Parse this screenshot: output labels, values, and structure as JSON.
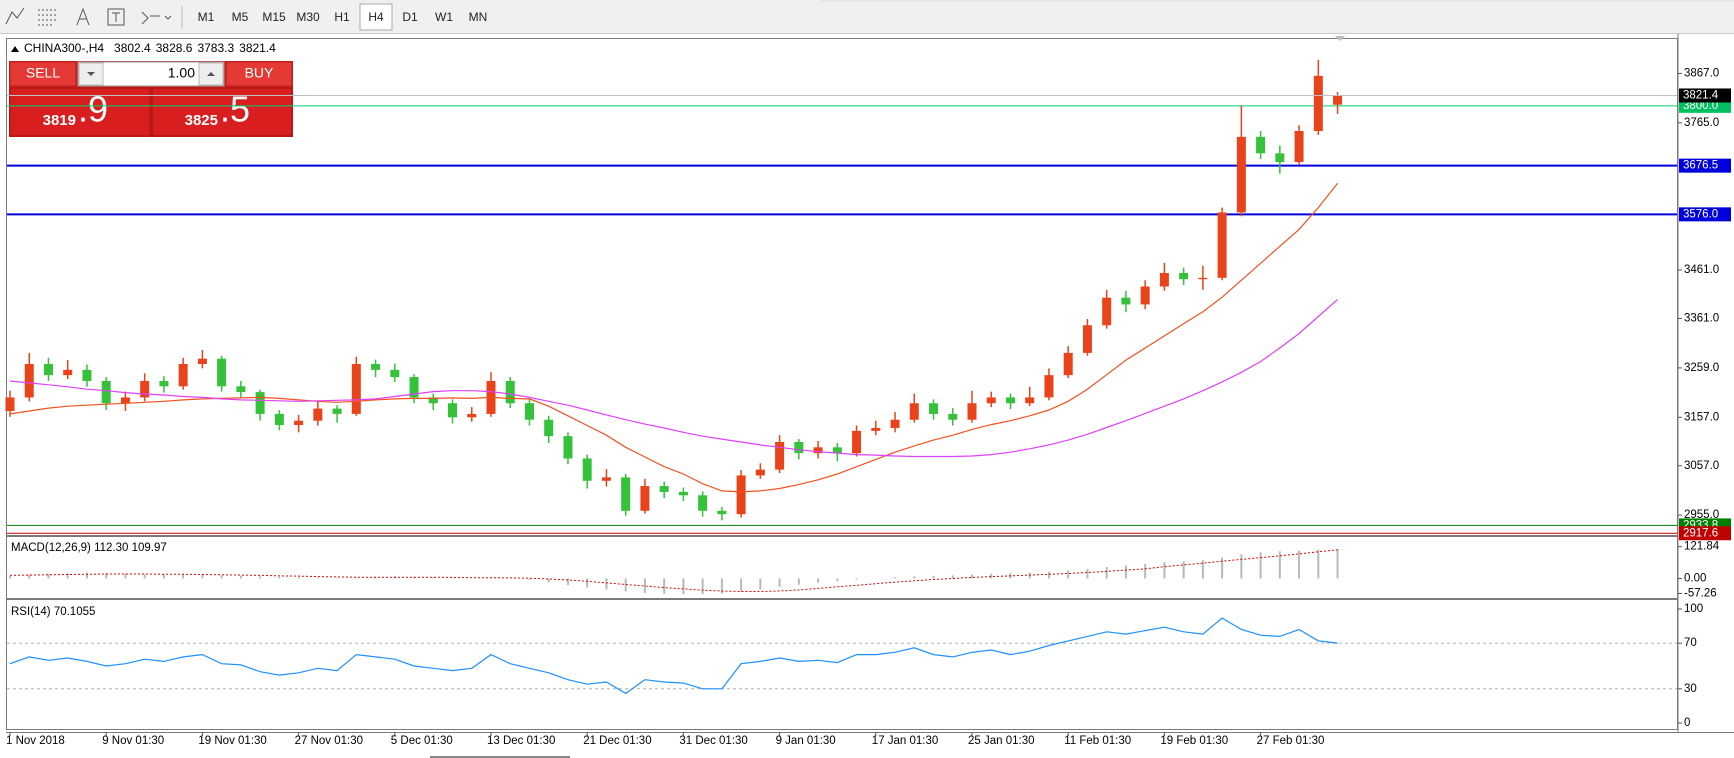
{
  "toolbar": {
    "timeframes": [
      "M1",
      "M5",
      "M15",
      "M30",
      "H1",
      "H4",
      "D1",
      "W1",
      "MN"
    ],
    "active": "H4"
  },
  "trade_panel": {
    "sell": "SELL",
    "buy": "BUY",
    "volume": "1.00",
    "bid_main": "3819",
    "bid_big": ".9",
    "ask_main": "3825",
    "ask_big": ".5"
  },
  "chart_data": {
    "type": "candlestick",
    "symbol": "CHINA300-,H4",
    "up_color": "#e8431a",
    "down_color": "#35c13a",
    "categories": [
      "1 Nov 2018",
      null,
      null,
      null,
      null,
      "9 Nov 01:30",
      null,
      null,
      null,
      null,
      "19 Nov 01:30",
      null,
      null,
      null,
      null,
      "27 Nov 01:30",
      null,
      null,
      null,
      null,
      "5 Dec 01:30",
      null,
      null,
      null,
      null,
      "13 Dec 01:30",
      null,
      null,
      null,
      null,
      "21 Dec 01:30",
      null,
      null,
      null,
      null,
      "31 Dec 01:30",
      null,
      null,
      null,
      null,
      "9 Jan 01:30",
      null,
      null,
      null,
      null,
      "17 Jan 01:30",
      null,
      null,
      null,
      null,
      "25 Jan 01:30",
      null,
      null,
      null,
      null,
      "11 Feb 01:30",
      null,
      null,
      null,
      null,
      "19 Feb 01:30",
      null,
      null,
      null,
      null,
      "27 Feb 01:30",
      null,
      null,
      null,
      null
    ],
    "candles": {
      "open": [
        3170,
        3198,
        3267,
        3244,
        3255,
        3232,
        3186,
        3198,
        3232,
        3221,
        3267,
        3278,
        3221,
        3209,
        3164,
        3141,
        3150,
        3175,
        3164,
        3267,
        3255,
        3240,
        3198,
        3186,
        3157,
        3164,
        3232,
        3186,
        3152,
        3118,
        3072,
        3026,
        3033,
        2964,
        3015,
        3003,
        2996,
        2964,
        2957,
        3037,
        3049,
        3106,
        3083,
        3095,
        3083,
        3129,
        3135,
        3152,
        3186,
        3164,
        3152,
        3186,
        3198,
        3186,
        3198,
        3244,
        3290,
        3347,
        3404,
        3390,
        3427,
        3455,
        3442,
        3445,
        3580,
        3736,
        3702,
        3684,
        3748,
        3802.4
      ],
      "high": [
        3212,
        3290,
        3280,
        3275,
        3266,
        3240,
        3210,
        3248,
        3242,
        3280,
        3296,
        3284,
        3232,
        3214,
        3172,
        3162,
        3190,
        3182,
        3282,
        3276,
        3268,
        3246,
        3206,
        3194,
        3178,
        3250,
        3240,
        3194,
        3160,
        3126,
        3080,
        3050,
        3040,
        3030,
        3024,
        3012,
        3004,
        2972,
        3048,
        3062,
        3120,
        3112,
        3108,
        3104,
        3140,
        3150,
        3168,
        3206,
        3194,
        3176,
        3212,
        3210,
        3206,
        3220,
        3258,
        3304,
        3360,
        3420,
        3418,
        3440,
        3476,
        3466,
        3470,
        3590,
        3800,
        3748,
        3718,
        3760,
        3895,
        3828.6
      ],
      "low": [
        3158,
        3190,
        3232,
        3236,
        3220,
        3172,
        3170,
        3190,
        3208,
        3214,
        3258,
        3210,
        3196,
        3150,
        3130,
        3126,
        3140,
        3146,
        3160,
        3240,
        3230,
        3186,
        3172,
        3144,
        3148,
        3158,
        3176,
        3140,
        3104,
        3060,
        3010,
        3014,
        2954,
        2958,
        2990,
        2984,
        2952,
        2944,
        2950,
        3030,
        3042,
        3070,
        3072,
        3066,
        3076,
        3120,
        3126,
        3146,
        3152,
        3140,
        3146,
        3178,
        3174,
        3180,
        3192,
        3238,
        3284,
        3340,
        3374,
        3380,
        3418,
        3430,
        3420,
        3440,
        3572,
        3690,
        3660,
        3678,
        3740,
        3783.3
      ],
      "close": [
        3198,
        3267,
        3244,
        3255,
        3232,
        3186,
        3198,
        3232,
        3221,
        3267,
        3278,
        3221,
        3209,
        3164,
        3141,
        3150,
        3175,
        3164,
        3267,
        3255,
        3240,
        3198,
        3186,
        3157,
        3164,
        3232,
        3186,
        3152,
        3118,
        3072,
        3026,
        3033,
        2964,
        3015,
        3003,
        2996,
        2964,
        2957,
        3037,
        3049,
        3106,
        3083,
        3095,
        3083,
        3129,
        3135,
        3152,
        3186,
        3164,
        3152,
        3186,
        3198,
        3186,
        3198,
        3244,
        3290,
        3347,
        3404,
        3390,
        3427,
        3455,
        3442,
        3445,
        3580,
        3736,
        3702,
        3684,
        3748,
        3862,
        3821.4
      ]
    },
    "ma": [
      {
        "color": "#f4511e",
        "values": [
          3164,
          3170,
          3176,
          3180,
          3182,
          3184,
          3186,
          3188,
          3190,
          3193,
          3195,
          3196,
          3197,
          3198,
          3196,
          3193,
          3190,
          3188,
          3190,
          3193,
          3195,
          3196,
          3196,
          3197,
          3196,
          3198,
          3196,
          3195,
          3180,
          3160,
          3140,
          3120,
          3095,
          3075,
          3055,
          3040,
          3020,
          3005,
          3003,
          3005,
          3010,
          3018,
          3028,
          3040,
          3055,
          3070,
          3085,
          3098,
          3110,
          3120,
          3132,
          3142,
          3150,
          3160,
          3172,
          3190,
          3215,
          3245,
          3275,
          3300,
          3325,
          3350,
          3375,
          3405,
          3440,
          3475,
          3510,
          3545,
          3590,
          3640
        ]
      },
      {
        "color": "#e040fb",
        "values": [
          3232,
          3228,
          3224,
          3220,
          3215,
          3212,
          3208,
          3205,
          3203,
          3200,
          3198,
          3195,
          3193,
          3192,
          3191,
          3190,
          3191,
          3192,
          3193,
          3195,
          3200,
          3205,
          3210,
          3212,
          3212,
          3210,
          3205,
          3198,
          3190,
          3182,
          3172,
          3162,
          3152,
          3143,
          3135,
          3126,
          3118,
          3112,
          3106,
          3100,
          3095,
          3090,
          3086,
          3083,
          3080,
          3079,
          3077,
          3076,
          3076,
          3076,
          3077,
          3080,
          3085,
          3092,
          3100,
          3110,
          3122,
          3136,
          3150,
          3165,
          3180,
          3195,
          3212,
          3230,
          3250,
          3272,
          3300,
          3330,
          3365,
          3400
        ]
      }
    ],
    "ylim": [
      2914,
      3938
    ],
    "yticks": [
      {
        "value": 2955,
        "label": "2955.0"
      },
      {
        "value": 3057,
        "label": "3057.0"
      },
      {
        "value": 3157,
        "label": "3157.0"
      },
      {
        "value": 3259,
        "label": "3259.0"
      },
      {
        "value": 3361,
        "label": "3361.0"
      },
      {
        "value": 3461,
        "label": "3461.0"
      },
      {
        "value": 3765,
        "label": "3765.0"
      },
      {
        "value": 3867,
        "label": "3867.0"
      }
    ],
    "levels": [
      {
        "value": 3800,
        "label": "3800.0",
        "color": "#00d26a",
        "box": "#00c060",
        "width": 1
      },
      {
        "value": 3676.5,
        "color": "#0000dd",
        "box": "#0000dd",
        "width": 2
      },
      {
        "value": 3576,
        "label": "3576.0",
        "color": "#0000dd",
        "box": "#0000dd",
        "width": 2
      },
      {
        "value": 2933.8,
        "color": "#008000",
        "box": "#008000",
        "width": 1
      },
      {
        "value": 2917.6,
        "color": "#c00000",
        "box": "#c00000",
        "width": 1
      }
    ],
    "macd": {
      "label": "MACD(12,26,9) 112.30 109.97",
      "ylim": [
        -71,
        155
      ],
      "yticks": [
        121.84,
        {
          "value": 0,
          "label": "0.00"
        },
        -57.26
      ],
      "main": [
        10,
        15,
        18,
        20,
        22,
        20,
        18,
        16,
        15,
        15,
        14,
        12,
        10,
        8,
        6,
        4,
        3,
        2,
        4,
        6,
        8,
        6,
        4,
        2,
        0,
        2,
        0,
        -5,
        -15,
        -25,
        -35,
        -42,
        -50,
        -55,
        -58,
        -60,
        -60,
        -58,
        -50,
        -42,
        -32,
        -24,
        -16,
        -10,
        -4,
        0,
        4,
        8,
        10,
        12,
        15,
        18,
        20,
        22,
        25,
        30,
        36,
        44,
        50,
        56,
        62,
        66,
        70,
        80,
        92,
        100,
        104,
        106,
        110,
        112.3
      ],
      "signal": [
        12,
        13,
        14,
        15,
        16,
        17,
        17,
        17,
        16,
        16,
        15,
        14,
        13,
        12,
        10,
        9,
        7,
        6,
        5,
        5,
        5,
        5,
        5,
        4,
        3,
        3,
        2,
        1,
        -2,
        -6,
        -11,
        -17,
        -23,
        -29,
        -35,
        -40,
        -45,
        -48,
        -50,
        -50,
        -48,
        -44,
        -38,
        -32,
        -26,
        -20,
        -14,
        -9,
        -4,
        0,
        4,
        7,
        10,
        13,
        16,
        19,
        23,
        27,
        32,
        37,
        45,
        52,
        59,
        66,
        73,
        80,
        87,
        94,
        102,
        109.97
      ],
      "hist_color": "#b8b8b8",
      "signal_color": "#e00000"
    },
    "rsi": {
      "label": "RSI(14) 70.1055",
      "ylim": [
        -7,
        107
      ],
      "yticks": [
        0,
        30,
        70,
        100
      ],
      "levels": [
        30,
        70
      ],
      "color": "#1e90ff",
      "values": [
        52,
        58,
        55,
        57,
        54,
        50,
        52,
        56,
        54,
        58,
        60,
        52,
        51,
        45,
        42,
        44,
        48,
        46,
        60,
        58,
        56,
        50,
        48,
        46,
        48,
        60,
        52,
        48,
        44,
        38,
        34,
        36,
        26,
        38,
        36,
        35,
        30,
        30,
        52,
        54,
        57,
        54,
        55,
        53,
        60,
        60,
        62,
        66,
        60,
        58,
        62,
        64,
        60,
        63,
        68,
        72,
        76,
        80,
        78,
        81,
        84,
        80,
        78,
        92,
        82,
        77,
        76,
        82,
        72,
        70.1055
      ]
    }
  }
}
